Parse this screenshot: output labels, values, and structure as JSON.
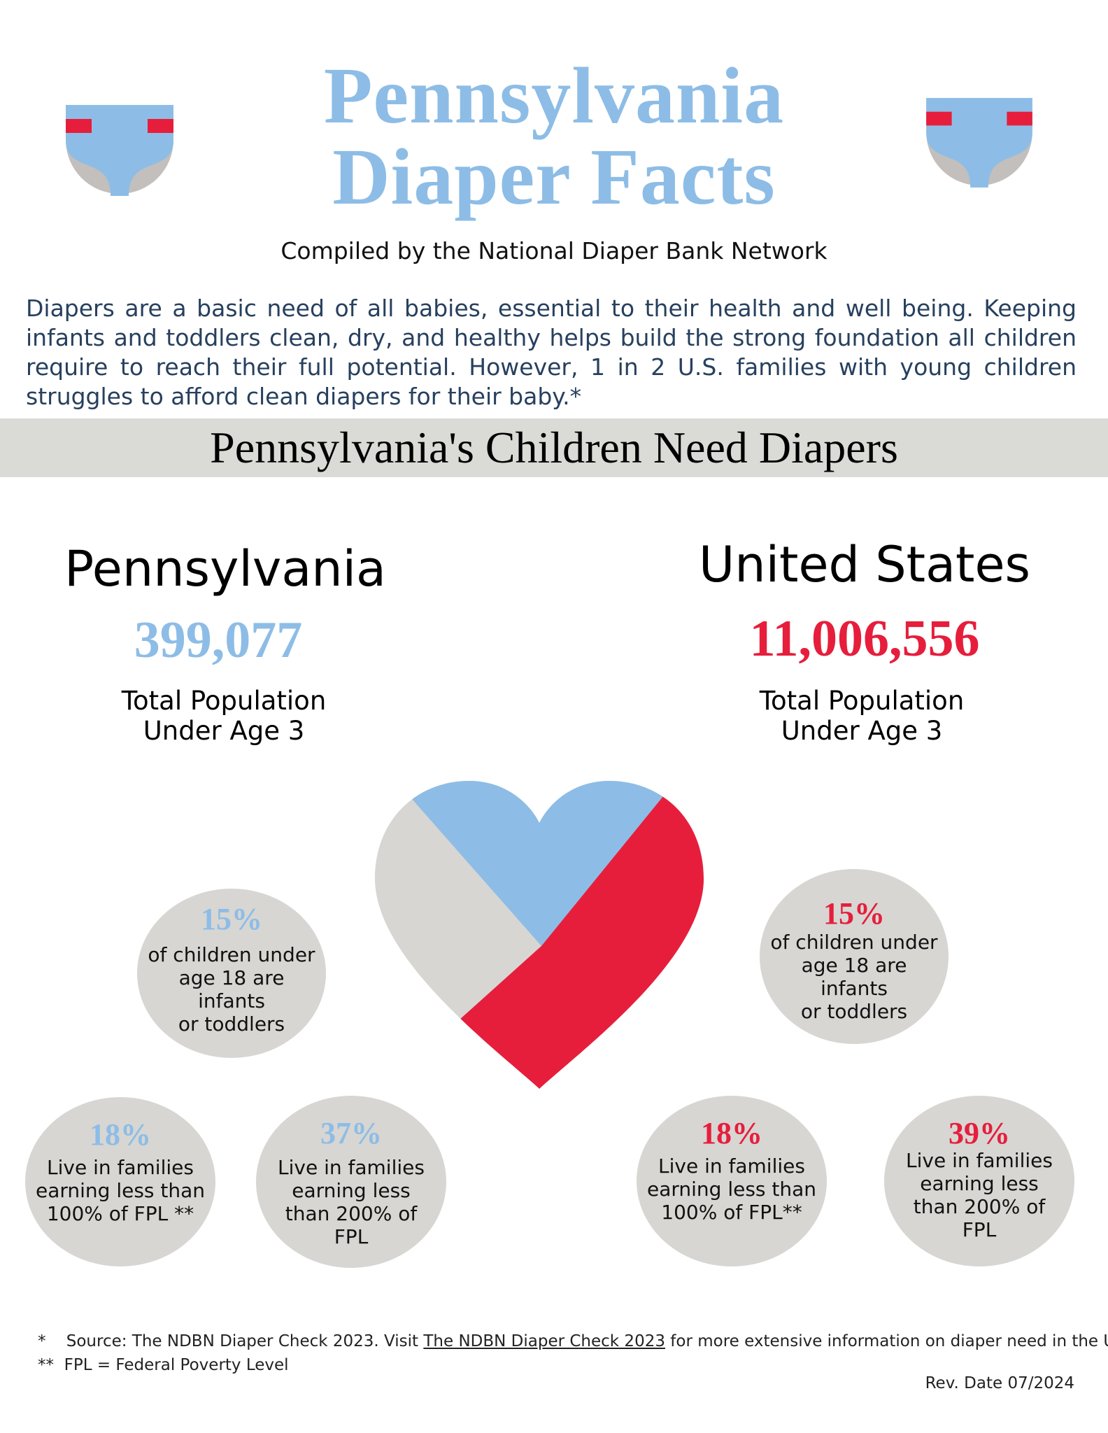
{
  "header": {
    "title_line1": "Pennsylvania",
    "title_line2": "Diaper Facts",
    "compiled_by": "Compiled by the National Diaper Bank Network",
    "left_icon": "diaper-icon",
    "right_icon": "diaper-icon"
  },
  "intro": {
    "text": "Diapers are a basic need of all babies, essential to their health and well being.  Keeping infants and toddlers clean, dry, and healthy helps build the strong foundation all children require to reach their full potential. However, 1 in 2 U.S. families with young children struggles to afford clean diapers for their baby.*"
  },
  "banner": {
    "text": "Pennsylvania's Children Need Diapers"
  },
  "pennsylvania": {
    "name": "Pennsylvania",
    "population": "399,077",
    "population_label_line1": "Total Population",
    "population_label_line2": "Under Age 3",
    "stat_infants": {
      "pct": "15%",
      "line1": "of children under",
      "line2": "age 18 are infants",
      "line3": "or toddlers"
    },
    "stat_fpl100": {
      "pct": "18%",
      "line1": "Live in families",
      "line2": "earning less than",
      "line3": "100% of FPL **"
    },
    "stat_fpl200": {
      "pct": "37%",
      "line1": "Live in families",
      "line2": "earning less",
      "line3": "than 200% of",
      "line4": "FPL"
    }
  },
  "united_states": {
    "name": "United States",
    "population": "11,006,556",
    "population_label_line1": "Total Population",
    "population_label_line2": "Under Age 3",
    "stat_infants": {
      "pct": "15%",
      "line1": "of children under",
      "line2": "age 18 are infants",
      "line3": "or toddlers"
    },
    "stat_fpl100": {
      "pct": "18%",
      "line1": "Live in families",
      "line2": "earning less than",
      "line3": "100% of FPL**"
    },
    "stat_fpl200": {
      "pct": "39%",
      "line1": "Live in families",
      "line2": "earning less",
      "line3": "than 200% of",
      "line4": "FPL"
    }
  },
  "heart": {
    "icon": "heart-icon"
  },
  "footer": {
    "note1_marker": "*",
    "note1_before": "Source: The NDBN Diaper Check 2023.  Visit",
    "note1_link": "The NDBN Diaper Check 2023",
    "note1_after": "for more extensive information on diaper need in the U.S.",
    "note2_marker": "**",
    "note2_text": "FPL = Federal Poverty Level",
    "rev_date": "Rev. Date 07/2024"
  },
  "colors": {
    "blue": "#8dbde6",
    "red": "#e61e3c",
    "gray": "#d7d6d3",
    "intro_text": "#27405e"
  }
}
